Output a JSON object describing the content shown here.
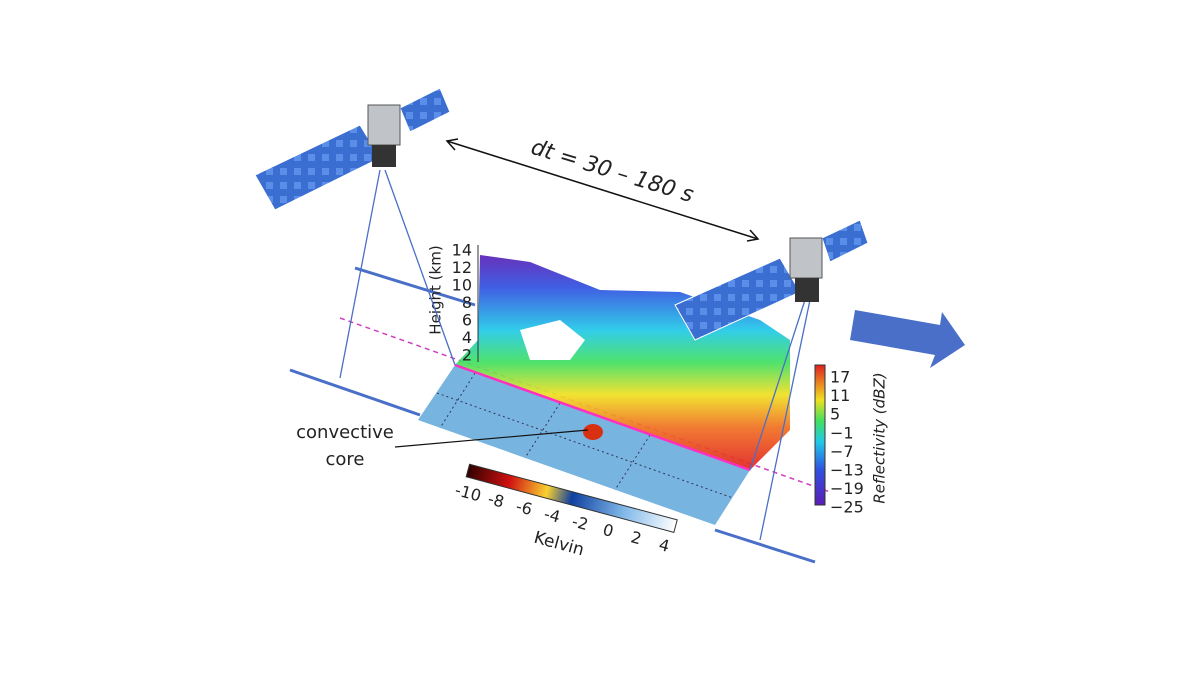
{
  "arrow_label": "dt = 30 – 180 s",
  "height_axis": {
    "title": "Height (km)",
    "ticks": [
      "2",
      "4",
      "6",
      "8",
      "10",
      "12",
      "14"
    ]
  },
  "reflectivity_scale": {
    "title": "Reflectivity (dBZ)",
    "ticks": [
      "17",
      "11",
      "5",
      "−1",
      "−7",
      "−13",
      "−19",
      "−25"
    ]
  },
  "annotation": {
    "lines": [
      "convective",
      "core"
    ]
  },
  "temperature_scale": {
    "title": "Kelvin",
    "ticks": [
      "-10",
      "-8",
      "-6",
      "-4",
      "-2",
      "0",
      "2",
      "4"
    ]
  }
}
